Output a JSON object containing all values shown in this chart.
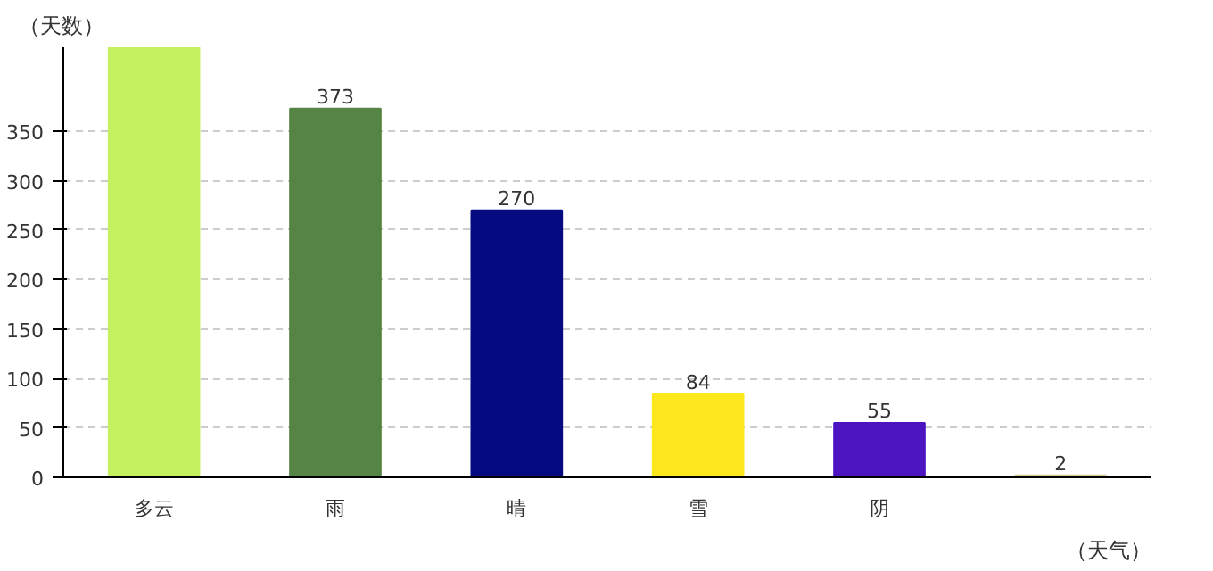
{
  "chart_data": {
    "type": "bar",
    "xlabel": "（天气）",
    "ylabel": "（天数）",
    "categories": [
      "多云",
      "雨",
      "晴",
      "雪",
      "阴",
      null
    ],
    "values": [
      435,
      373,
      270,
      84,
      55,
      2
    ],
    "colors": [
      "#c5f060",
      "#568445",
      "#050a80",
      "#fce81c",
      "#4c14c0",
      "#d8c890"
    ],
    "value_labels": [
      null,
      "373",
      "270",
      "84",
      "55",
      "2"
    ],
    "ylim": [
      0,
      435
    ],
    "yticks": [
      0,
      50,
      100,
      150,
      200,
      250,
      300,
      350
    ],
    "grid": "y"
  }
}
